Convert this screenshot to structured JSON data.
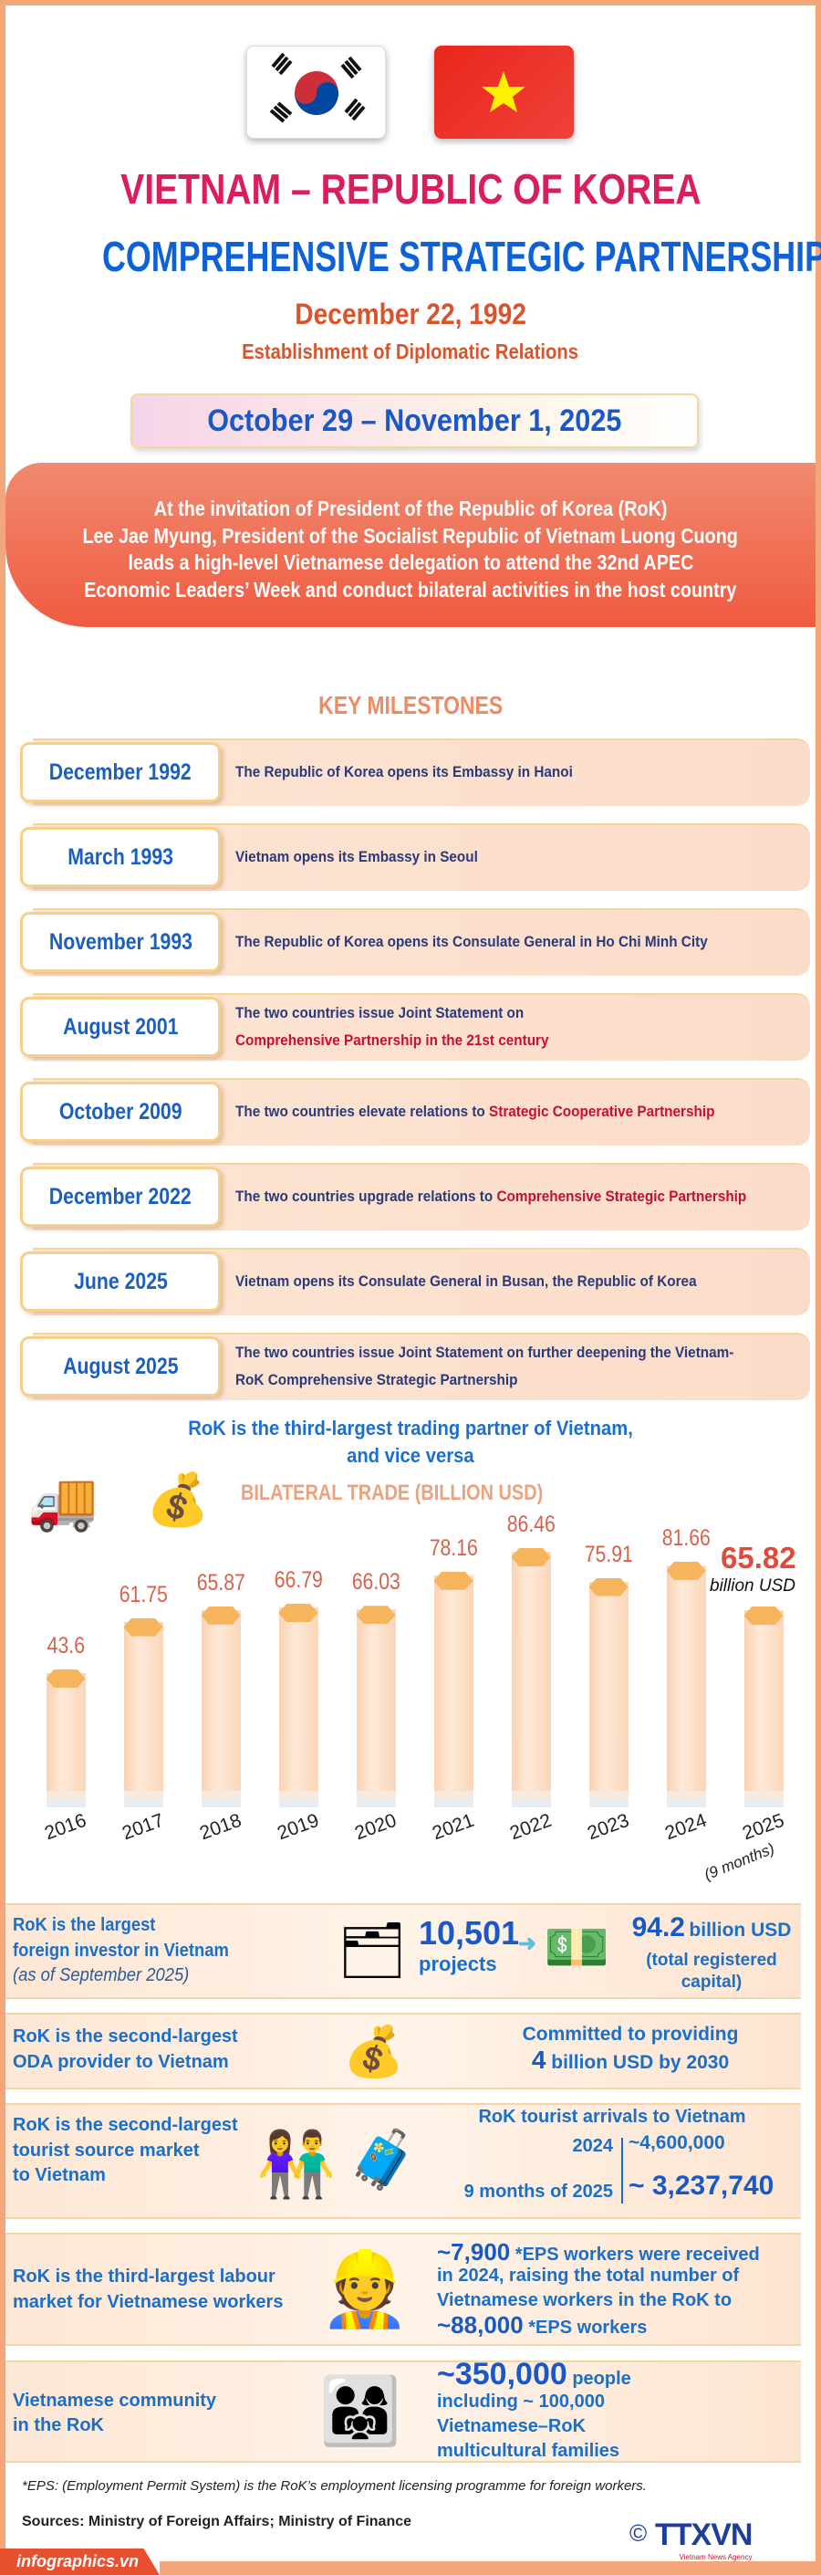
{
  "colors": {
    "title_red": "#d81e5b",
    "title_blue": "#0f62d6",
    "accent_orange": "#ef8a62",
    "highlight_red": "#c8102e",
    "bar_fill": "#fde3cc",
    "bar_cap": "#f6b45c"
  },
  "header": {
    "flags": [
      "flag-republic-of-korea",
      "flag-vietnam"
    ],
    "title_line1": "VIETNAM – REPUBLIC OF KOREA",
    "title_line2": "COMPREHENSIVE STRATEGIC PARTNERSHIP",
    "established_date": "December 22, 1992",
    "established_label": "Establishment of Diplomatic Relations",
    "visit_dates": "October 29 – November 1, 2025"
  },
  "intro": {
    "lines": [
      "At the invitation of President of the Republic of Korea (RoK)",
      "Lee Jae Myung, President of the Socialist Republic of Vietnam Luong Cuong",
      "leads a high-level Vietnamese delegation to attend the 32nd APEC",
      "Economic Leaders’ Week and conduct bilateral activities in the host country"
    ]
  },
  "milestones": {
    "title": "KEY MILESTONES",
    "items": [
      {
        "date": "December 1992",
        "text": "The Republic of Korea opens its Embassy in Hanoi",
        "highlight": ""
      },
      {
        "date": "March 1993",
        "text": "Vietnam opens its Embassy in Seoul",
        "highlight": ""
      },
      {
        "date": "November 1993",
        "text": "The Republic of Korea opens its Consulate General in Ho Chi Minh City",
        "highlight": ""
      },
      {
        "date": "August 2001",
        "text": "The two countries issue Joint Statement on",
        "highlight": "Comprehensive Partnership in the 21st century"
      },
      {
        "date": "October 2009",
        "text": "The two countries elevate relations to ",
        "highlight": "Strategic Cooperative Partnership"
      },
      {
        "date": "December 2022",
        "text": "The two countries upgrade relations to ",
        "highlight": "Comprehensive Strategic Partnership"
      },
      {
        "date": "June 2025",
        "text": "Vietnam opens its Consulate General in Busan, the Republic of Korea",
        "highlight": ""
      },
      {
        "date": "August 2025",
        "text": "The two countries issue Joint Statement on further deepening the Vietnam-RoK Comprehensive Strategic Partnership",
        "highlight": ""
      }
    ]
  },
  "trade": {
    "heading_line1": "RoK is the third-largest trading partner of Vietnam,",
    "heading_line2": "and vice versa"
  },
  "chart_data": {
    "type": "bar",
    "title": "BILATERAL TRADE (BILLION USD)",
    "categories": [
      "2016",
      "2017",
      "2018",
      "2019",
      "2020",
      "2021",
      "2022",
      "2023",
      "2024",
      "2025"
    ],
    "category_note": "(9 months)",
    "values": [
      43.6,
      61.75,
      65.87,
      66.79,
      66.03,
      78.16,
      86.46,
      75.91,
      81.66,
      65.82
    ],
    "value_labels": [
      "43.6",
      "61.75",
      "65.87",
      "66.79",
      "66.03",
      "78.16",
      "86.46",
      "75.91",
      "81.66",
      "65.82"
    ],
    "last_unit": "billion USD",
    "xlabel": "",
    "ylabel": "",
    "grid": false
  },
  "sections": {
    "investor": {
      "line1": "RoK is the largest",
      "line2": "foreign investor in Vietnam",
      "note": "(as of September 2025)",
      "projects_value": "10,501",
      "projects_label": "projects",
      "capital_value": "94.2",
      "capital_unit": "billion USD",
      "capital_label1": "(total registered",
      "capital_label2": "capital)"
    },
    "oda": {
      "line1": "RoK is the second-largest",
      "line2": "ODA provider to Vietnam",
      "commit1": "Committed to providing",
      "commit_value": "4",
      "commit2": "billion USD by 2030"
    },
    "tourism": {
      "line1": "RoK is the second-largest",
      "line2": "tourist source market",
      "line3": "to Vietnam",
      "heading": "RoK tourist arrivals to Vietnam",
      "row1_label": "2024",
      "row1_value": "~4,600,000",
      "row2_label": "9 months of 2025",
      "row2_value": "~ 3,237,740"
    },
    "labour": {
      "line1": "RoK is the third-largest labour",
      "line2": "market for Vietnamese workers",
      "r1_value": "~7,900",
      "r1_text": " *EPS workers were received",
      "r2": "in 2024, raising the total number of",
      "r3": "Vietnamese workers in the RoK to",
      "r4_value": "~88,000",
      "r4_text": " *EPS workers"
    },
    "community": {
      "line1": "Vietnamese community",
      "line2": "in the RoK",
      "value": "~350,000",
      "value_text": " people",
      "r2": "including ~ 100,000",
      "r3": "Vietnamese–RoK",
      "r4": "multicultural families"
    }
  },
  "footer": {
    "footnote": "*EPS: (Employment Permit System) is the RoK’s employment licensing programme for foreign workers.",
    "sources": "Sources: Ministry of Foreign Affairs; Ministry of Finance",
    "site": "infographics.vn",
    "copyright": "©",
    "logo": "TTXVN",
    "logo_sub": "Vietnam News Agency"
  }
}
